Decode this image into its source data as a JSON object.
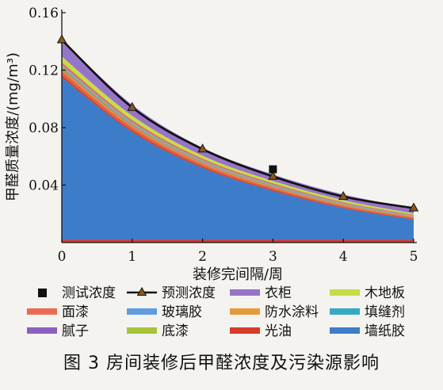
{
  "caption": "图 3   房间装修后甲醛浓度及污染源影响",
  "chart_data": {
    "type": "area",
    "xlabel": "装修完间隔/周",
    "ylabel": "甲醛质量浓度/(mg/m³)",
    "xlim": [
      0,
      5
    ],
    "ylim": [
      0,
      0.16
    ],
    "xticks": [
      "0",
      "1",
      "2",
      "3",
      "4",
      "5"
    ],
    "yticks": [
      "0.04",
      "0.08",
      "0.12",
      "0.16"
    ],
    "x": [
      0,
      1,
      2,
      3,
      4,
      5
    ],
    "stacked_series": [
      {
        "name": "墙纸胶",
        "color": "#3d7cc9",
        "values": [
          0.115,
          0.077,
          0.052,
          0.036,
          0.024,
          0.016
        ]
      },
      {
        "name": "光油",
        "color": "#d83a2b",
        "values": [
          0.0015,
          0.0012,
          0.001,
          0.0008,
          0.0006,
          0.0005
        ]
      },
      {
        "name": "底漆",
        "color": "#e0643a",
        "values": [
          0.0025,
          0.002,
          0.0015,
          0.0012,
          0.001,
          0.0008
        ]
      },
      {
        "name": "腻子",
        "color": "#e8874a",
        "values": [
          0.002,
          0.0015,
          0.0012,
          0.001,
          0.0008,
          0.0006
        ]
      },
      {
        "name": "填缝剂",
        "color": "#36a9c4",
        "values": [
          0.001,
          0.0008,
          0.0006,
          0.0005,
          0.0004,
          0.0003
        ]
      },
      {
        "name": "防水涂料",
        "color": "#e69b3a",
        "values": [
          0.001,
          0.0008,
          0.0006,
          0.0005,
          0.0004,
          0.0003
        ]
      },
      {
        "name": "玻璃胶",
        "color": "#5f9de0",
        "values": [
          0.001,
          0.0008,
          0.0006,
          0.0005,
          0.0004,
          0.0003
        ]
      },
      {
        "name": "面漆",
        "color": "#ec6a52",
        "values": [
          0.0015,
          0.0012,
          0.001,
          0.0008,
          0.0006,
          0.0005
        ]
      },
      {
        "name": "木地板",
        "color": "#c8dc45",
        "values": [
          0.004,
          0.003,
          0.002,
          0.0016,
          0.0013,
          0.001
        ]
      },
      {
        "name": "衣柜",
        "color": "#9674c8",
        "values": [
          0.012,
          0.0075,
          0.0055,
          0.0045,
          0.004,
          0.0035
        ]
      }
    ],
    "series": [
      {
        "name": "预测浓度",
        "marker": "triangle",
        "color": "#111111",
        "values": [
          0.141,
          0.094,
          0.065,
          0.046,
          0.032,
          0.024
        ]
      },
      {
        "name": "测试浓度",
        "marker": "square",
        "color": "#111111",
        "x": [
          3
        ],
        "values": [
          0.051
        ]
      }
    ],
    "baseline_line": {
      "color": "#d83a2b",
      "value": 0.0005
    },
    "legend": {
      "placement": "bottom",
      "items": [
        {
          "name": "测试浓度",
          "kind": "square",
          "color": "#111111"
        },
        {
          "name": "预测浓度",
          "kind": "line-triangle",
          "color": "#111111"
        },
        {
          "name": "衣柜",
          "kind": "patch",
          "color": "#9674c8"
        },
        {
          "name": "木地板",
          "kind": "patch",
          "color": "#c8dc45"
        },
        {
          "name": "面漆",
          "kind": "patch",
          "color": "#ec6a52"
        },
        {
          "name": "玻璃胶",
          "kind": "patch",
          "color": "#5f9de0"
        },
        {
          "name": "防水涂料",
          "kind": "patch",
          "color": "#e69b3a"
        },
        {
          "name": "填缝剂",
          "kind": "patch",
          "color": "#36a9c4"
        },
        {
          "name": "腻子",
          "kind": "patch",
          "color": "#8a5fc0"
        },
        {
          "name": "底漆",
          "kind": "patch",
          "color": "#a6c43a"
        },
        {
          "name": "光油",
          "kind": "patch",
          "color": "#d83a2b"
        },
        {
          "name": "墙纸胶",
          "kind": "patch",
          "color": "#3d7cc9"
        }
      ]
    }
  }
}
